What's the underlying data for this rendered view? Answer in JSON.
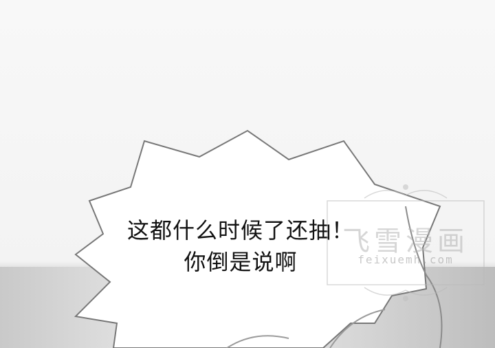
{
  "comic_panel": {
    "speech_bubble": {
      "line1": "这都什么时候了还抽！",
      "line2": "你倒是说啊"
    },
    "watermark": {
      "logo_text": "飞雪漫画",
      "url": "feixuemh.com"
    }
  }
}
